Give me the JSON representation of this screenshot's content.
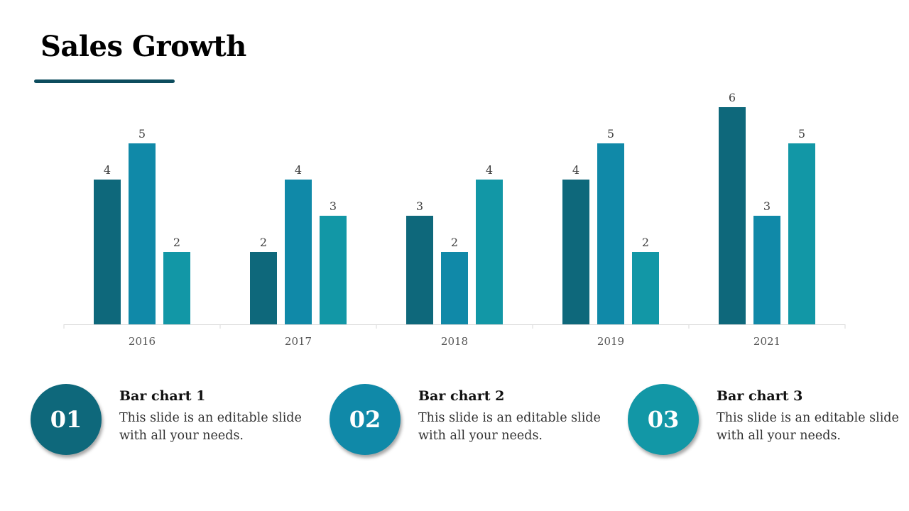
{
  "title": "Sales Growth",
  "colors": {
    "accent": "#0d4d5e",
    "series1": "#0e687b",
    "series2": "#1089a8",
    "series3": "#1297a6"
  },
  "chart_data": {
    "type": "bar",
    "categories": [
      "2016",
      "2017",
      "2018",
      "2019",
      "2021"
    ],
    "series": [
      {
        "values": [
          4,
          2,
          3,
          4,
          6
        ]
      },
      {
        "values": [
          5,
          4,
          2,
          5,
          3
        ]
      },
      {
        "values": [
          2,
          3,
          4,
          2,
          5
        ]
      }
    ],
    "ylim": [
      0,
      6
    ],
    "grid": false,
    "data_labels": true,
    "xlabel": "",
    "ylabel": ""
  },
  "items": [
    {
      "number": "01",
      "title": "Bar chart 1",
      "desc": "This slide is an editable slide with all your needs."
    },
    {
      "number": "02",
      "title": "Bar chart 2",
      "desc": "This slide is an editable slide with all your needs."
    },
    {
      "number": "03",
      "title": "Bar chart 3",
      "desc": "This slide is an editable slide with all your needs."
    }
  ]
}
